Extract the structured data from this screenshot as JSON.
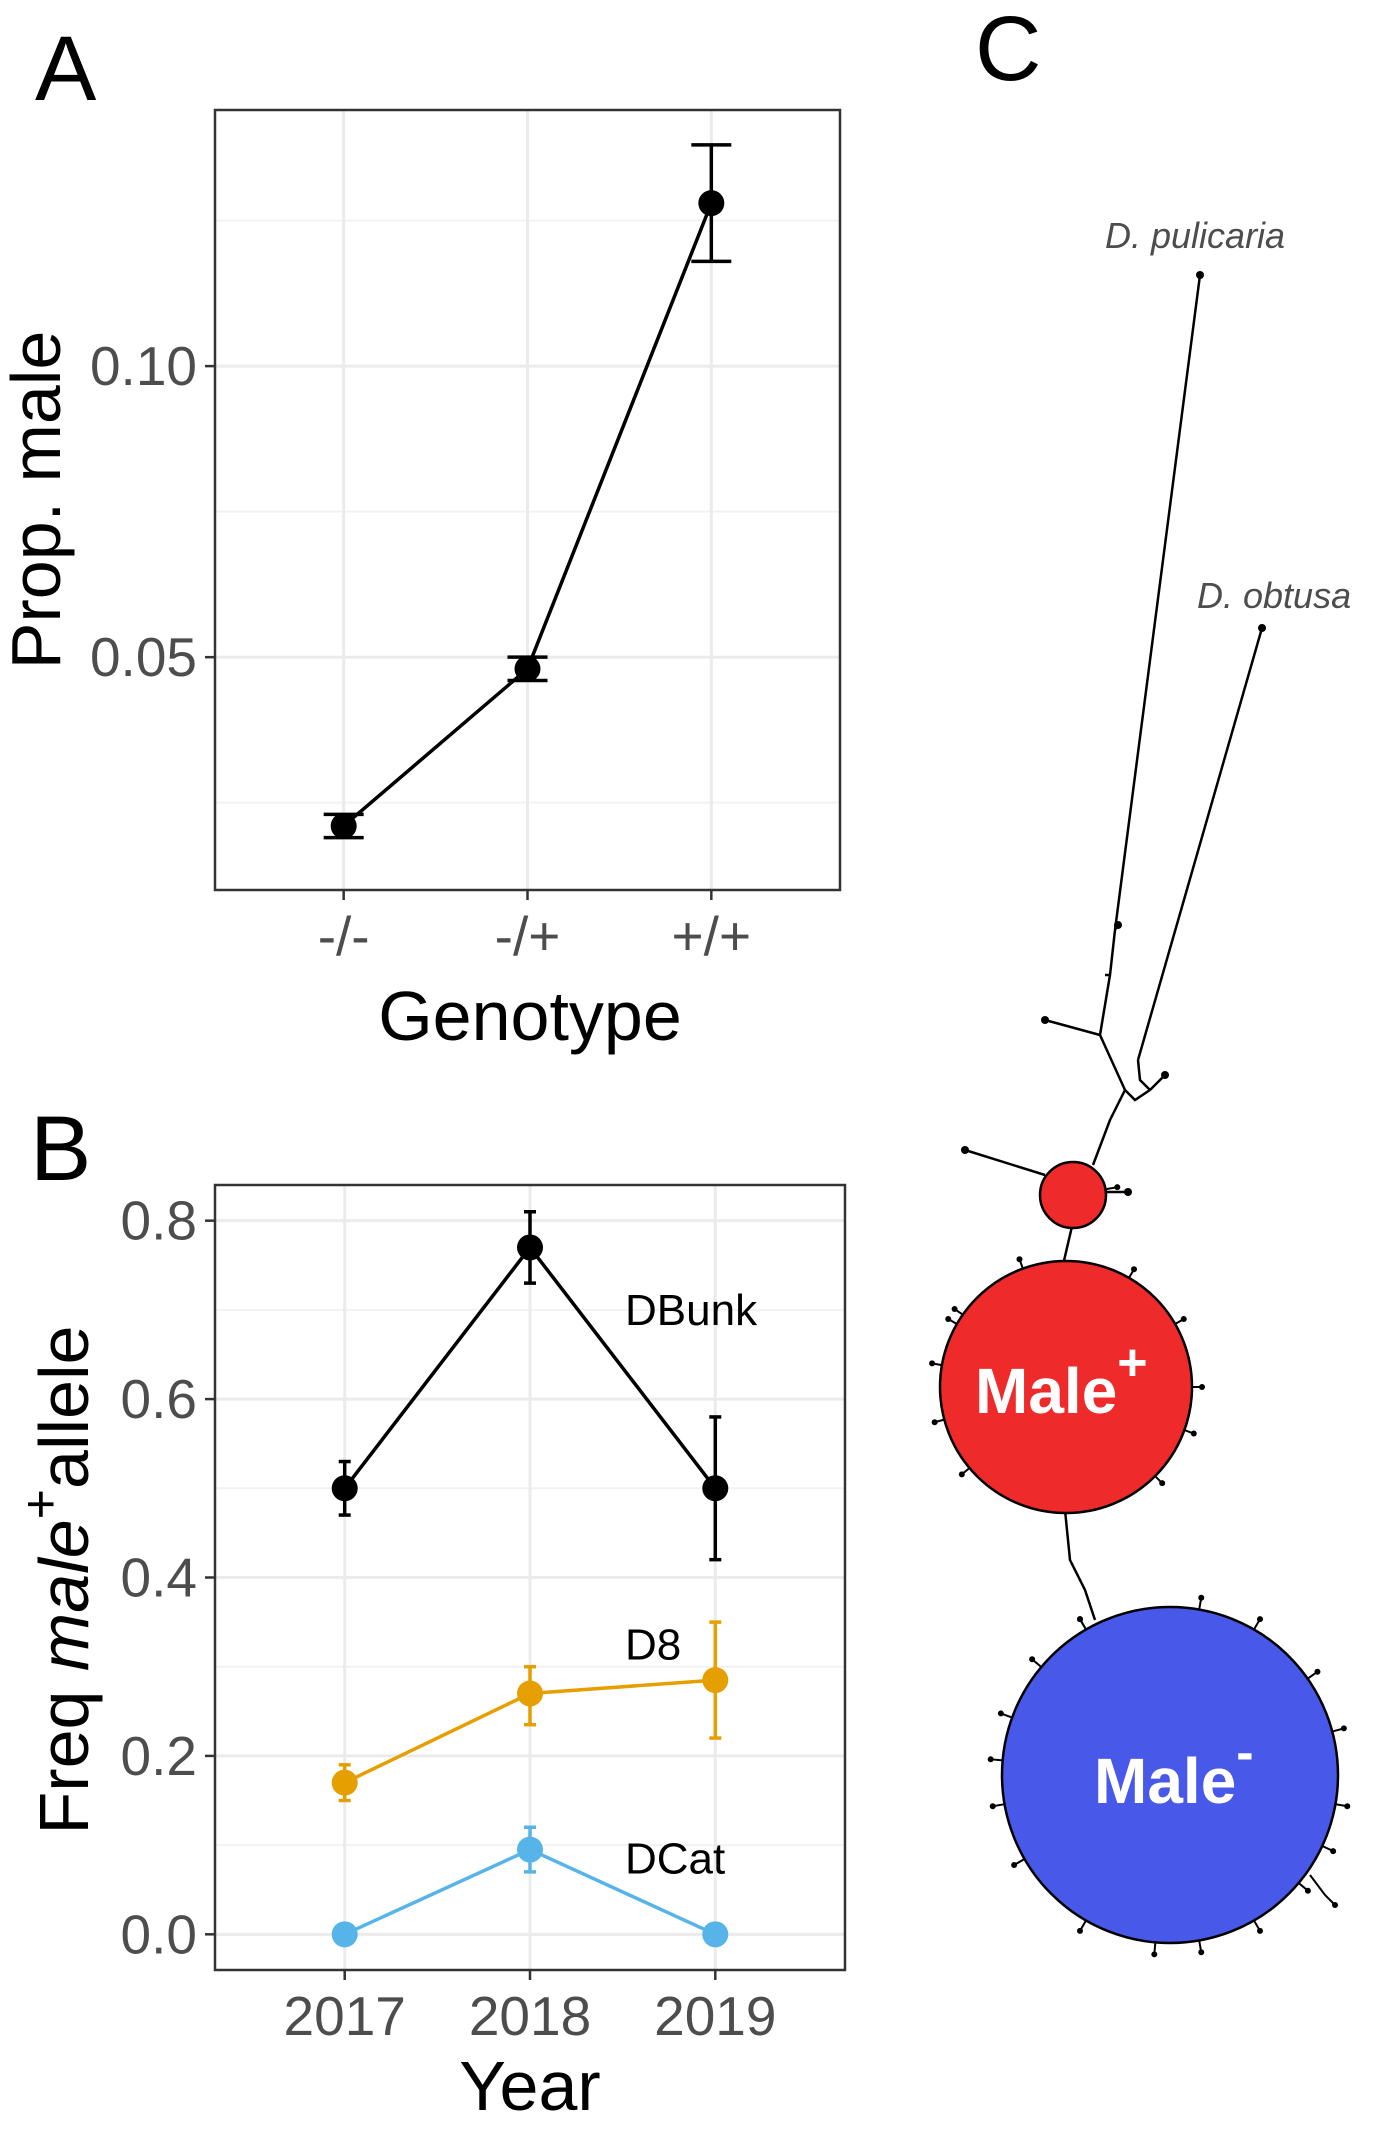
{
  "panels": {
    "a": {
      "letter": "A"
    },
    "b": {
      "letter": "B"
    },
    "c": {
      "letter": "C"
    }
  },
  "chart_data": [
    {
      "type": "line",
      "panel": "A",
      "categories": [
        "-/-",
        "-/+",
        "+/+"
      ],
      "values": [
        0.021,
        0.048,
        0.128
      ],
      "error": [
        [
          0.019,
          0.023
        ],
        [
          0.046,
          0.05
        ],
        [
          0.118,
          0.138
        ]
      ],
      "xlabel": "Genotype",
      "ylabel": "Prop. male",
      "ylim": [
        0.01,
        0.144
      ],
      "yticks": [
        0.05,
        0.1
      ],
      "ytick_labels": [
        "0.05",
        "0.10"
      ],
      "grid": true
    },
    {
      "type": "line",
      "panel": "B",
      "categories": [
        "2017",
        "2018",
        "2019"
      ],
      "xlabel": "Year",
      "ylabel_parts": [
        "Freq ",
        "male",
        "+",
        "allele"
      ],
      "ylim": [
        -0.04,
        0.84
      ],
      "yticks": [
        0.0,
        0.2,
        0.4,
        0.6,
        0.8
      ],
      "ytick_labels": [
        "0.0",
        "0.2",
        "0.4",
        "0.6",
        "0.8"
      ],
      "grid": true,
      "series": [
        {
          "name": "DBunk",
          "color": "#000000",
          "values": [
            0.5,
            0.77,
            0.5
          ],
          "error": [
            [
              0.47,
              0.53
            ],
            [
              0.73,
              0.81
            ],
            [
              0.42,
              0.58
            ]
          ]
        },
        {
          "name": "D8",
          "color": "#E69F00",
          "values": [
            0.17,
            0.27,
            0.285
          ],
          "error": [
            [
              0.15,
              0.19
            ],
            [
              0.235,
              0.3
            ],
            [
              0.22,
              0.35
            ]
          ]
        },
        {
          "name": "DCat",
          "color": "#56B4E9",
          "values": [
            0.0,
            0.095,
            0.0
          ],
          "error": [
            [
              0.0,
              0.0
            ],
            [
              0.07,
              0.12
            ],
            [
              0.0,
              0.0
            ]
          ]
        }
      ]
    }
  ],
  "network": {
    "species": [
      "D. pulicaria",
      "D. obtusa"
    ],
    "nodes": [
      {
        "label": "Male",
        "sup": "+",
        "color": "#EE2A2A"
      },
      {
        "label": "Male",
        "sup": "-",
        "color": "#4859EA"
      },
      {
        "label": "",
        "color": "#EE2A2A"
      }
    ]
  }
}
